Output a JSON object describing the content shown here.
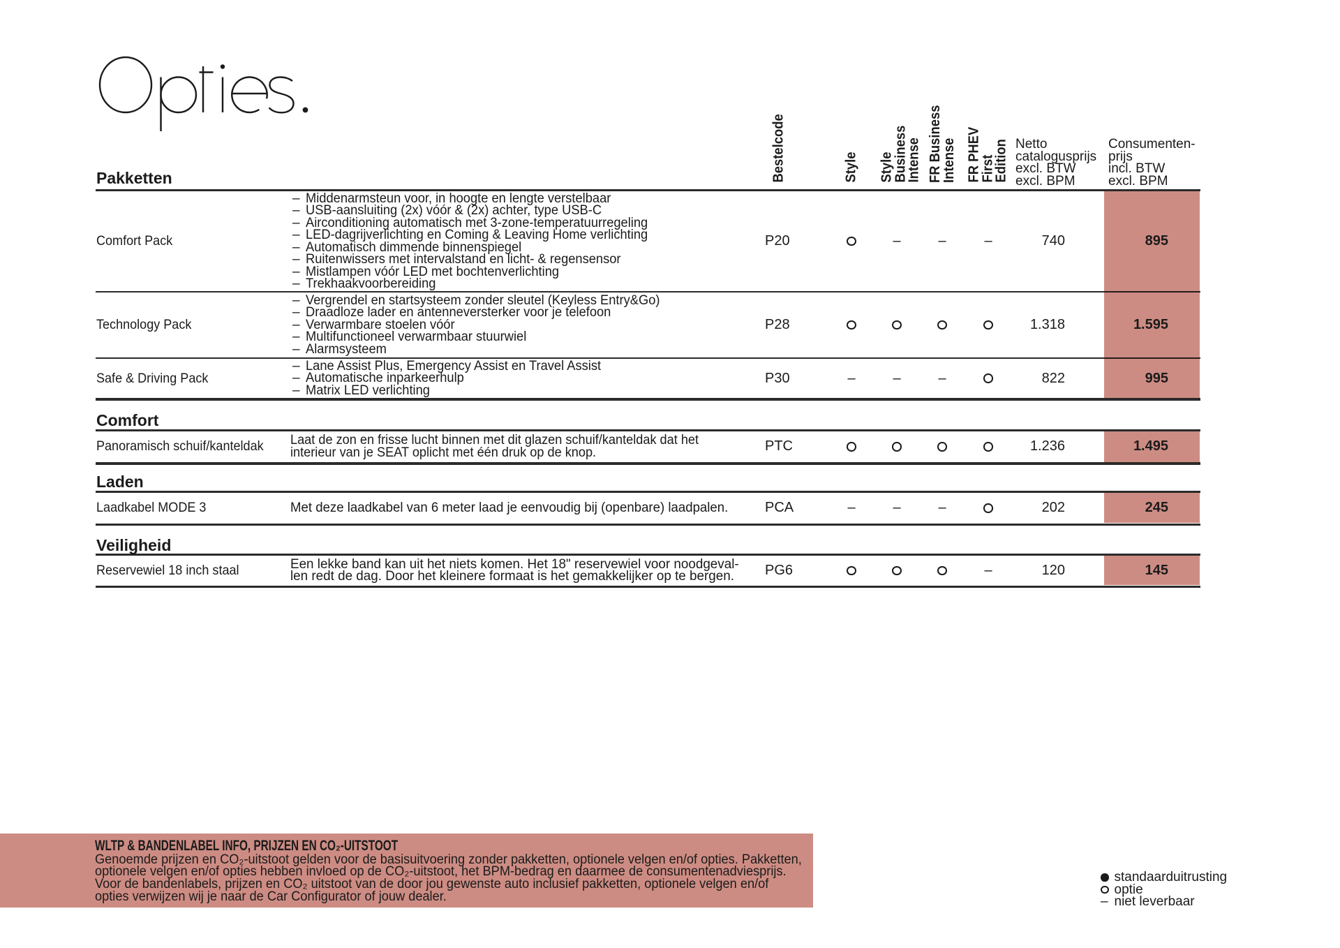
{
  "page": {
    "title": "Opties."
  },
  "symbols": {
    "dash": "–"
  },
  "colors": {
    "accent_pink": "#cd8c83",
    "text": "#1b1b1b"
  },
  "columns": {
    "bestelcode": "Bestelcode",
    "trims": [
      "Style",
      "Style\nBusiness\nIntense",
      "FR Business\nIntense",
      "FR PHEV\nFirst\nEdition"
    ],
    "netto": "Netto\ncatalogusprijs\nexcl. BTW\nexcl. BPM",
    "consumer": "Consumenten-\nprijs\nincl. BTW\nexcl. BPM"
  },
  "pakketten": {
    "heading": "Pakketten",
    "rows": [
      {
        "label": "Comfort Pack",
        "bullets": [
          "Middenarmsteun voor, in hoogte en lengte verstelbaar",
          "USB-aansluiting (2x) vóór & (2x) achter, type USB-C",
          "Airconditioning automatisch met 3-zone-temperatuurregeling",
          "LED-dagrijverlichting en Coming & Leaving Home verlichting",
          "Automatisch dimmende binnenspiegel",
          "Ruitenwissers met intervalstand en licht- & regensensor",
          "Mistlampen vóór LED met bochtenverlichting",
          "Trekhaakvoorbereiding"
        ],
        "code": "P20",
        "availability": [
          "option",
          "na",
          "na",
          "na"
        ],
        "netto": "740",
        "consumer": "895"
      },
      {
        "label": "Technology Pack",
        "bullets": [
          "Vergrendel en startsysteem zonder sleutel (Keyless Entry&Go)",
          "Draadloze lader en antenneversterker voor je telefoon",
          "Verwarmbare stoelen vóór",
          "Multifunctioneel verwarmbaar stuurwiel",
          "Alarmsysteem"
        ],
        "code": "P28",
        "availability": [
          "option",
          "option",
          "option",
          "option"
        ],
        "netto": "1.318",
        "consumer": "1.595"
      },
      {
        "label": "Safe & Driving Pack",
        "bullets": [
          "Lane Assist Plus, Emergency Assist en Travel Assist",
          "Automatische inparkeerhulp",
          "Matrix LED verlichting"
        ],
        "code": "P30",
        "availability": [
          "na",
          "na",
          "na",
          "option"
        ],
        "netto": "822",
        "consumer": "995"
      }
    ]
  },
  "comfort": {
    "heading": "Comfort",
    "row": {
      "label": "Panoramisch schuif/kanteldak",
      "description": "Laat de zon en frisse lucht binnen met dit glazen schuif/kanteldak dat het\ninterieur van je SEAT oplicht met één druk op de knop.",
      "code": "PTC",
      "availability": [
        "option",
        "option",
        "option",
        "option"
      ],
      "netto": "1.236",
      "consumer": "1.495"
    }
  },
  "laden": {
    "heading": "Laden",
    "row": {
      "label": "Laadkabel MODE 3",
      "description": "Met deze laadkabel van 6 meter laad je eenvoudig bij (openbare) laadpalen.",
      "code": "PCA",
      "availability": [
        "na",
        "na",
        "na",
        "option"
      ],
      "netto": "202",
      "consumer": "245"
    }
  },
  "veiligheid": {
    "heading": "Veiligheid",
    "row": {
      "label": "Reservewiel 18 inch staal",
      "description": "Een lekke band kan uit het niets komen. Het 18\" reservewiel voor noodgeval-\nlen redt de dag. Door het kleinere formaat is het gemakkelijker op te bergen.",
      "code": "PG6",
      "availability": [
        "option",
        "option",
        "option",
        "na"
      ],
      "netto": "120",
      "consumer": "145"
    }
  },
  "footer": {
    "heading": "WLTP & BANDENLABEL INFO, PRIJZEN EN CO₂-UITSTOOT",
    "body": "Genoemde prijzen en CO₂-uitstoot gelden voor de basisuitvoering zonder pakketten, optionele velgen en/of opties. Pakketten,\noptionele velgen en/of opties hebben invloed op de CO₂-uitstoot, het BPM-bedrag en daarmee de consumentenadviesprijs.\nVoor de bandenlabels, prijzen en CO₂ uitstoot van de door jou gewenste auto inclusief pakketten, optionele velgen en/of\nopties verwijzen wij je naar de Car Configurator of jouw dealer."
  },
  "legend": {
    "items": [
      {
        "symbol": "standard",
        "label": "standaarduitrusting"
      },
      {
        "symbol": "option",
        "label": "optie"
      },
      {
        "symbol": "na",
        "label": "niet leverbaar"
      }
    ]
  }
}
